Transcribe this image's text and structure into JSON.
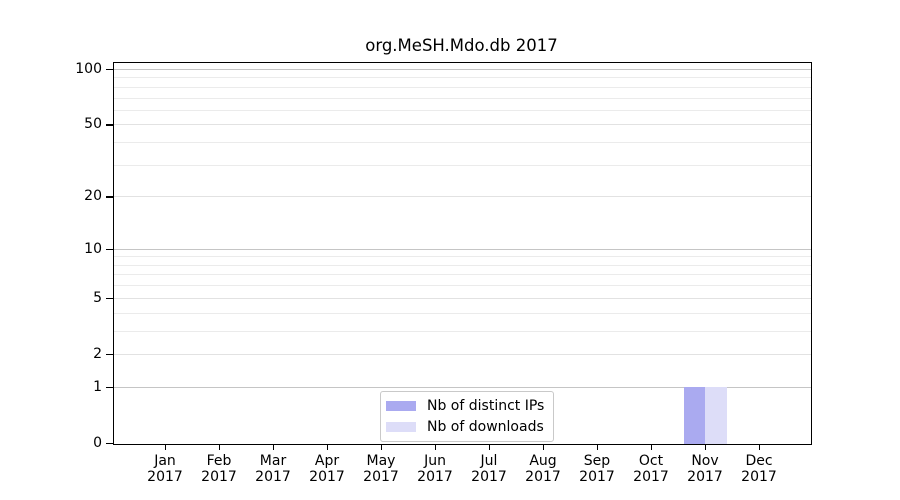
{
  "chart_data": {
    "type": "bar",
    "title": "org.MeSH.Mdo.db 2017",
    "categories": [
      {
        "month": "Jan",
        "year": "2017"
      },
      {
        "month": "Feb",
        "year": "2017"
      },
      {
        "month": "Mar",
        "year": "2017"
      },
      {
        "month": "Apr",
        "year": "2017"
      },
      {
        "month": "May",
        "year": "2017"
      },
      {
        "month": "Jun",
        "year": "2017"
      },
      {
        "month": "Jul",
        "year": "2017"
      },
      {
        "month": "Aug",
        "year": "2017"
      },
      {
        "month": "Sep",
        "year": "2017"
      },
      {
        "month": "Oct",
        "year": "2017"
      },
      {
        "month": "Nov",
        "year": "2017"
      },
      {
        "month": "Dec",
        "year": "2017"
      }
    ],
    "series": [
      {
        "name": "Nb of distinct IPs",
        "color": "#aaaaf0",
        "values": [
          0,
          0,
          0,
          0,
          0,
          0,
          0,
          0,
          0,
          0,
          1,
          0
        ]
      },
      {
        "name": "Nb of downloads",
        "color": "#ddddf8",
        "values": [
          0,
          0,
          0,
          0,
          0,
          0,
          0,
          0,
          0,
          0,
          1,
          0
        ]
      }
    ],
    "y_axis": {
      "scale": "log1p",
      "ticks": [
        0,
        1,
        2,
        5,
        10,
        20,
        50,
        100
      ],
      "minor_gridlines": [
        3,
        4,
        6,
        7,
        8,
        9,
        30,
        40,
        60,
        70,
        80,
        90
      ],
      "ylim": [
        0,
        100
      ]
    },
    "xlabel": "",
    "ylabel": "",
    "grid": true,
    "legend_position": "bottom-center-inside"
  },
  "colors": {
    "bar_distinct_ips": "#aaaaf0",
    "bar_downloads": "#ddddf8",
    "grid_power10": "#c5c5c5",
    "grid_labeled": "#e2e2e2",
    "grid_minor": "#ebebeb",
    "axis": "#000000",
    "legend_border": "#c9c9c9",
    "text": "#000000"
  }
}
